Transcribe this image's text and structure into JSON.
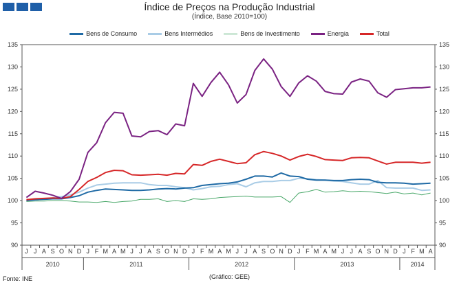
{
  "chart_data": {
    "type": "line",
    "title": "Índice de Preços na Produção Industrial",
    "subtitle": "(Índice, Base 2010=100)",
    "source": "Fonte: INE",
    "credit": "(Gráfico: GEE)",
    "ylim": [
      90,
      135
    ],
    "yticks": [
      90,
      95,
      100,
      105,
      110,
      115,
      120,
      125,
      130,
      135
    ],
    "x": [
      "J",
      "J",
      "A",
      "S",
      "O",
      "N",
      "D",
      "J",
      "F",
      "M",
      "A",
      "M",
      "J",
      "J",
      "A",
      "S",
      "O",
      "N",
      "D",
      "J",
      "F",
      "M",
      "A",
      "M",
      "J",
      "J",
      "A",
      "S",
      "O",
      "N",
      "D",
      "J",
      "F",
      "M",
      "A",
      "M",
      "J",
      "J",
      "A",
      "S",
      "O",
      "N",
      "D",
      "J",
      "F",
      "M",
      "A"
    ],
    "years": [
      {
        "label": "2010",
        "start": 0,
        "end": 6
      },
      {
        "label": "2011",
        "start": 7,
        "end": 18
      },
      {
        "label": "2012",
        "start": 19,
        "end": 30
      },
      {
        "label": "2013",
        "start": 31,
        "end": 42
      },
      {
        "label": "2014",
        "start": 43,
        "end": 46
      }
    ],
    "series": [
      {
        "name": "Bens de Consumo",
        "color": "#1f6aa5",
        "values": [
          100.0,
          100.2,
          100.3,
          100.4,
          100.4,
          100.7,
          101.1,
          101.9,
          102.3,
          102.6,
          102.5,
          102.4,
          102.3,
          102.3,
          102.4,
          102.6,
          102.7,
          102.6,
          102.8,
          102.9,
          103.4,
          103.6,
          103.8,
          103.9,
          104.2,
          104.8,
          105.5,
          105.5,
          105.3,
          106.2,
          105.5,
          105.4,
          104.8,
          104.6,
          104.6,
          104.5,
          104.5,
          104.7,
          104.8,
          104.7,
          104.1,
          104.0,
          104.0,
          103.9,
          103.7,
          103.8,
          103.9
        ]
      },
      {
        "name": "Bens Intermédios",
        "color": "#a9cce6",
        "values": [
          100.0,
          100.1,
          100.4,
          100.6,
          100.9,
          101.3,
          101.9,
          102.8,
          103.5,
          103.7,
          103.9,
          104.0,
          104.0,
          104.0,
          103.6,
          103.4,
          103.4,
          103.1,
          102.9,
          102.4,
          102.7,
          103.1,
          103.2,
          103.6,
          103.8,
          103.1,
          104.0,
          104.3,
          104.3,
          104.5,
          104.5,
          105.0,
          104.9,
          104.7,
          104.6,
          104.4,
          104.3,
          104.0,
          103.7,
          103.7,
          104.5,
          102.9,
          102.8,
          102.8,
          102.8,
          102.3,
          102.4
        ]
      },
      {
        "name": "Bens de Investimento",
        "color": "#4aa86a",
        "values": [
          99.8,
          99.9,
          99.9,
          100.0,
          100.0,
          99.9,
          99.7,
          99.7,
          99.6,
          99.8,
          99.6,
          99.8,
          99.9,
          100.3,
          100.3,
          100.4,
          99.8,
          100.0,
          99.8,
          100.4,
          100.3,
          100.4,
          100.7,
          100.8,
          100.9,
          101.0,
          100.8,
          100.8,
          100.8,
          100.9,
          99.6,
          101.7,
          102.0,
          102.5,
          101.9,
          102.0,
          102.2,
          102.0,
          102.1,
          102.0,
          101.8,
          101.6,
          101.9,
          101.5,
          101.7,
          101.3,
          101.7
        ]
      },
      {
        "name": "Energia",
        "color": "#7a2282",
        "values": [
          100.7,
          102.1,
          101.7,
          101.2,
          100.5,
          102.0,
          104.8,
          110.8,
          113.0,
          117.5,
          119.8,
          119.6,
          114.5,
          114.3,
          115.5,
          115.7,
          114.8,
          117.2,
          116.8,
          126.3,
          123.4,
          126.5,
          128.8,
          126.0,
          121.9,
          123.8,
          129.2,
          131.8,
          129.5,
          125.6,
          123.4,
          126.4,
          128.0,
          126.8,
          124.5,
          124.0,
          123.9,
          126.6,
          127.3,
          126.8,
          124.2,
          123.2,
          124.9,
          125.1,
          125.3,
          125.3,
          125.5
        ]
      },
      {
        "name": "Total",
        "color": "#d62728",
        "values": [
          100.2,
          100.4,
          100.5,
          100.6,
          100.5,
          100.9,
          102.5,
          104.3,
          105.2,
          106.3,
          106.8,
          106.7,
          105.8,
          105.7,
          105.8,
          105.9,
          105.7,
          106.1,
          106.0,
          108.1,
          107.9,
          108.8,
          109.3,
          108.8,
          108.3,
          108.5,
          110.3,
          111.0,
          110.6,
          110.0,
          109.1,
          109.9,
          110.4,
          109.9,
          109.2,
          109.1,
          109.0,
          109.6,
          109.7,
          109.6,
          108.9,
          108.2,
          108.6,
          108.6,
          108.6,
          108.4,
          108.6
        ]
      }
    ]
  }
}
